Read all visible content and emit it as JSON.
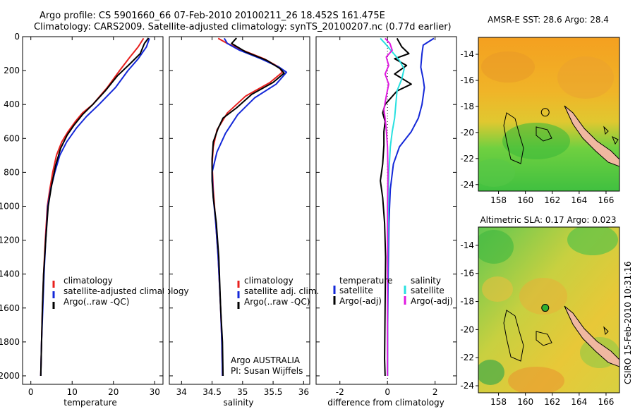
{
  "header": {
    "line1": "Argo profile: CS 5901660_66 07-Feb-2010 20100211_26 18.452S 161.475E",
    "line2": "Climatology: CARS2009. Satellite-adjusted climatology: synTS_20100207.nc (0.77d earlier)"
  },
  "side_stamp": "CSIRO 15-Feb-2010 10:31:16",
  "colors": {
    "climatology": "#e8201e",
    "satellite": "#1428d8",
    "argo": "#000000",
    "argo_adj": "#e018e0",
    "satellite_sal": "#28e0e0"
  },
  "chart_data": [
    {
      "type": "line",
      "name": "temperature",
      "xlabel": "temperature",
      "ylabel": "",
      "xlim": [
        -2,
        32
      ],
      "ylim": [
        2050,
        0
      ],
      "x_ticks": [
        0,
        10,
        20,
        30
      ],
      "y_ticks": [
        0,
        200,
        400,
        600,
        800,
        1000,
        1200,
        1400,
        1600,
        1800,
        2000
      ],
      "legend": [
        "climatology",
        "satellite-adjusted climatology",
        "Argo(..raw -QC)"
      ],
      "series": [
        {
          "name": "climatology",
          "color": "#e8201e",
          "points": [
            [
              27.3,
              10
            ],
            [
              26,
              60
            ],
            [
              24,
              120
            ],
            [
              21.5,
              200
            ],
            [
              18.5,
              300
            ],
            [
              15,
              400
            ],
            [
              12.5,
              450
            ],
            [
              10.8,
              500
            ],
            [
              9,
              560
            ],
            [
              7.5,
              620
            ],
            [
              6.2,
              700
            ],
            [
              5.3,
              800
            ],
            [
              4.6,
              900
            ],
            [
              4,
              1000
            ],
            [
              3.5,
              1200
            ],
            [
              3.1,
              1400
            ],
            [
              2.8,
              1600
            ],
            [
              2.6,
              1800
            ],
            [
              2.4,
              2000
            ]
          ]
        },
        {
          "name": "satellite",
          "color": "#1428d8",
          "points": [
            [
              28.7,
              10
            ],
            [
              28,
              60
            ],
            [
              26,
              130
            ],
            [
              23.5,
              200
            ],
            [
              20.5,
              300
            ],
            [
              16.5,
              400
            ],
            [
              13.5,
              470
            ],
            [
              11,
              540
            ],
            [
              8.7,
              620
            ],
            [
              7,
              700
            ],
            [
              5.8,
              800
            ],
            [
              4.8,
              900
            ],
            [
              4.1,
              1000
            ],
            [
              3.6,
              1200
            ],
            [
              3.2,
              1400
            ],
            [
              2.9,
              1600
            ],
            [
              2.6,
              1800
            ],
            [
              2.4,
              2000
            ]
          ]
        },
        {
          "name": "argo",
          "color": "#000000",
          "points": [
            [
              28.5,
              8
            ],
            [
              27.5,
              40
            ],
            [
              26.5,
              100
            ],
            [
              24,
              160
            ],
            [
              21,
              230
            ],
            [
              18,
              320
            ],
            [
              15,
              400
            ],
            [
              12.5,
              460
            ],
            [
              10.5,
              520
            ],
            [
              8.8,
              580
            ],
            [
              7.2,
              660
            ],
            [
              6,
              760
            ],
            [
              5,
              880
            ],
            [
              4.2,
              1000
            ],
            [
              3.6,
              1200
            ],
            [
              3.1,
              1400
            ],
            [
              2.8,
              1600
            ],
            [
              2.6,
              1800
            ],
            [
              2.4,
              2000
            ]
          ]
        }
      ]
    },
    {
      "type": "line",
      "name": "salinity",
      "xlabel": "salinity",
      "xlim": [
        33.8,
        36.1
      ],
      "ylim": [
        2050,
        0
      ],
      "x_ticks": [
        34,
        34.5,
        35,
        35.5,
        36
      ],
      "legend": [
        "climatology",
        "satellite adj. clim.",
        "Argo(..raw -QC)"
      ],
      "series": [
        {
          "name": "climatology",
          "color": "#e8201e",
          "points": [
            [
              34.6,
              10
            ],
            [
              34.75,
              40
            ],
            [
              35.0,
              80
            ],
            [
              35.35,
              130
            ],
            [
              35.6,
              180
            ],
            [
              35.65,
              210
            ],
            [
              35.45,
              270
            ],
            [
              35.05,
              350
            ],
            [
              34.75,
              450
            ],
            [
              34.58,
              550
            ],
            [
              34.52,
              650
            ],
            [
              34.5,
              750
            ],
            [
              34.52,
              900
            ],
            [
              34.56,
              1100
            ],
            [
              34.6,
              1300
            ],
            [
              34.64,
              1600
            ],
            [
              34.66,
              1800
            ],
            [
              34.67,
              2000
            ]
          ]
        },
        {
          "name": "satellite",
          "color": "#1428d8",
          "points": [
            [
              34.7,
              10
            ],
            [
              34.75,
              40
            ],
            [
              34.95,
              80
            ],
            [
              35.3,
              130
            ],
            [
              35.6,
              180
            ],
            [
              35.72,
              210
            ],
            [
              35.55,
              280
            ],
            [
              35.2,
              360
            ],
            [
              34.92,
              460
            ],
            [
              34.72,
              570
            ],
            [
              34.58,
              680
            ],
            [
              34.5,
              800
            ],
            [
              34.52,
              950
            ],
            [
              34.56,
              1100
            ],
            [
              34.6,
              1300
            ],
            [
              34.64,
              1600
            ],
            [
              34.66,
              1800
            ],
            [
              34.67,
              2000
            ]
          ]
        },
        {
          "name": "argo",
          "color": "#000000",
          "points": [
            [
              34.9,
              8
            ],
            [
              34.82,
              40
            ],
            [
              35.05,
              90
            ],
            [
              35.4,
              140
            ],
            [
              35.62,
              190
            ],
            [
              35.68,
              215
            ],
            [
              35.5,
              270
            ],
            [
              35.15,
              340
            ],
            [
              34.9,
              420
            ],
            [
              34.68,
              480
            ],
            [
              34.6,
              540
            ],
            [
              34.52,
              620
            ],
            [
              34.5,
              720
            ],
            [
              34.5,
              850
            ],
            [
              34.52,
              950
            ],
            [
              34.57,
              1100
            ],
            [
              34.61,
              1300
            ],
            [
              34.64,
              1600
            ],
            [
              34.67,
              1800
            ],
            [
              34.68,
              2000
            ]
          ]
        }
      ]
    },
    {
      "type": "line",
      "name": "difference",
      "xlabel": "difference from climatology",
      "xlim": [
        -3,
        2.9
      ],
      "ylim": [
        2050,
        0
      ],
      "x_ticks": [
        -2,
        0,
        2
      ],
      "legend": [
        "temperature",
        "satellite",
        "Argo(-adj)",
        "salinity",
        "satellite",
        "Argo(-adj)"
      ],
      "series": [
        {
          "name": "temperature satellite",
          "color": "#1428d8",
          "points": [
            [
              1.95,
              10
            ],
            [
              1.5,
              50
            ],
            [
              1.45,
              100
            ],
            [
              1.4,
              180
            ],
            [
              1.5,
              250
            ],
            [
              1.55,
              300
            ],
            [
              1.45,
              400
            ],
            [
              1.3,
              480
            ],
            [
              1.0,
              560
            ],
            [
              0.5,
              650
            ],
            [
              0.25,
              750
            ],
            [
              0.12,
              900
            ],
            [
              0.06,
              1100
            ],
            [
              0.03,
              1400
            ],
            [
              0.01,
              1700
            ],
            [
              0,
              2000
            ]
          ]
        },
        {
          "name": "temperature argo",
          "color": "#000000",
          "points": [
            [
              0.4,
              10
            ],
            [
              0.6,
              60
            ],
            [
              0.9,
              100
            ],
            [
              0.3,
              130
            ],
            [
              0.8,
              170
            ],
            [
              0.3,
              220
            ],
            [
              1.0,
              280
            ],
            [
              0.4,
              320
            ],
            [
              -0.1,
              400
            ],
            [
              -0.2,
              450
            ],
            [
              -0.1,
              500
            ],
            [
              -0.15,
              560
            ],
            [
              -0.15,
              640
            ],
            [
              -0.2,
              750
            ],
            [
              -0.3,
              850
            ],
            [
              -0.2,
              950
            ],
            [
              -0.12,
              1100
            ],
            [
              -0.08,
              1300
            ],
            [
              -0.1,
              1600
            ],
            [
              -0.12,
              1900
            ],
            [
              -0.1,
              2000
            ]
          ]
        },
        {
          "name": "salinity satellite",
          "color": "#28e0e0",
          "points": [
            [
              -0.3,
              10
            ],
            [
              -0.1,
              40
            ],
            [
              0.2,
              90
            ],
            [
              0.5,
              140
            ],
            [
              0.7,
              190
            ],
            [
              0.6,
              250
            ],
            [
              0.4,
              320
            ],
            [
              0.35,
              400
            ],
            [
              0.3,
              480
            ],
            [
              0.2,
              560
            ],
            [
              0.12,
              650
            ],
            [
              0.06,
              800
            ],
            [
              0.03,
              1000
            ],
            [
              0.01,
              1300
            ],
            [
              0,
              2000
            ]
          ]
        },
        {
          "name": "salinity argo",
          "color": "#e018e0",
          "points": [
            [
              -0.1,
              10
            ],
            [
              0.1,
              40
            ],
            [
              0.2,
              80
            ],
            [
              -0.05,
              120
            ],
            [
              0.05,
              170
            ],
            [
              -0.1,
              220
            ],
            [
              0.05,
              280
            ],
            [
              -0.05,
              350
            ],
            [
              -0.15,
              430
            ],
            [
              -0.1,
              480
            ],
            [
              -0.05,
              550
            ],
            [
              0,
              650
            ],
            [
              0.02,
              800
            ],
            [
              0,
              1000
            ],
            [
              0,
              1400
            ],
            [
              0,
              2000
            ]
          ]
        }
      ]
    },
    {
      "type": "heatmap",
      "name": "sst-map",
      "title": "AMSR-E SST: 28.6 Argo: 28.4",
      "xlim": [
        156.5,
        167
      ],
      "ylim": [
        -24.5,
        -12.7
      ],
      "x_ticks": [
        158,
        160,
        162,
        164,
        166
      ],
      "y_ticks": [
        -14,
        -16,
        -18,
        -20,
        -22,
        -24
      ],
      "argo_marker": [
        161.475,
        -18.452
      ]
    },
    {
      "type": "heatmap",
      "name": "sla-map",
      "title": "Altimetric SLA: 0.17 Argo: 0.023",
      "xlim": [
        156.5,
        167
      ],
      "ylim": [
        -24.5,
        -12.7
      ],
      "x_ticks": [
        158,
        160,
        162,
        164,
        166
      ],
      "y_ticks": [
        -14,
        -16,
        -18,
        -20,
        -22,
        -24
      ],
      "argo_marker": [
        161.475,
        -18.452
      ]
    }
  ],
  "annotations": {
    "argo_country": "Argo AUSTRALIA",
    "pi": "PI: Susan Wijffels"
  }
}
